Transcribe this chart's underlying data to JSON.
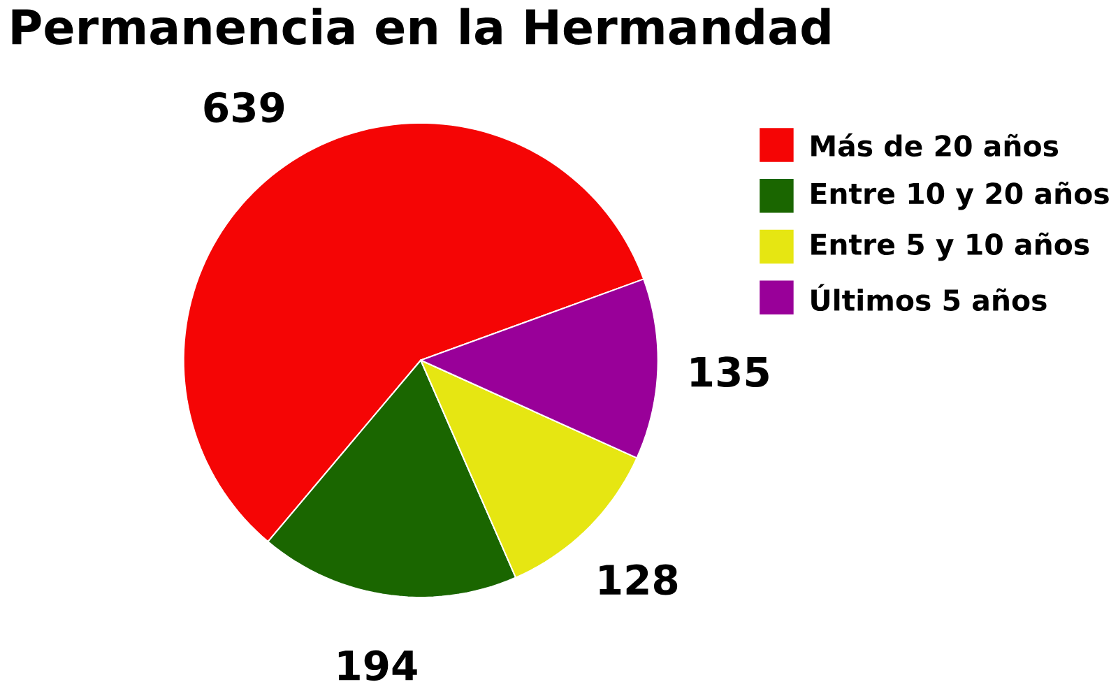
{
  "chart_data": {
    "type": "pie",
    "title": "Permanencia en la Hermandad",
    "categories": [
      "Más de 20 años",
      "Entre 10 y 20 años",
      "Entre 5 y 10 años",
      "Últimos 5 años"
    ],
    "values": [
      639,
      194,
      128,
      135
    ],
    "colors": [
      "#f50505",
      "#1a6600",
      "#e6e612",
      "#990099"
    ],
    "data_labels": true,
    "legend": "top right"
  }
}
